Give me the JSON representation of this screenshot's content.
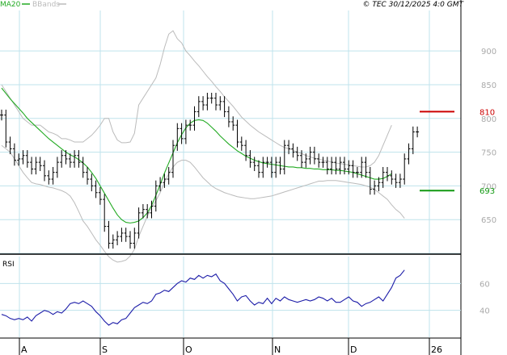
{
  "legend": {
    "ma": "MA20",
    "bb": "BBands"
  },
  "copyright": "© TEC 30/12/2025 4:0 GMT",
  "colors": {
    "ma": "#22aa22",
    "bb": "#bbbbbb",
    "bars": "#000000",
    "rsi": "#1c1ca8",
    "resistance": "#cc0000",
    "support": "#119911",
    "grid": "#bfe3ec"
  },
  "chart_data": [
    {
      "type": "ohlc",
      "ylim": [
        600,
        960
      ],
      "y_ticks": [
        "900",
        "850",
        "800",
        "750",
        "700",
        "650"
      ],
      "x_ticks": [
        "A",
        "S",
        "O",
        "N",
        "D",
        "26"
      ],
      "levels": [
        {
          "value": 810,
          "label": "810"
        },
        {
          "value": 693,
          "label": "693"
        }
      ],
      "closes": [
        805,
        765,
        755,
        738,
        740,
        745,
        735,
        725,
        735,
        730,
        715,
        710,
        720,
        735,
        745,
        740,
        735,
        745,
        735,
        720,
        710,
        700,
        690,
        680,
        640,
        615,
        620,
        625,
        630,
        625,
        615,
        630,
        660,
        665,
        660,
        670,
        700,
        705,
        710,
        720,
        760,
        785,
        770,
        790,
        790,
        810,
        825,
        820,
        830,
        830,
        820,
        825,
        810,
        795,
        790,
        765,
        760,
        745,
        735,
        730,
        720,
        735,
        735,
        720,
        735,
        725,
        760,
        755,
        750,
        745,
        735,
        740,
        750,
        740,
        735,
        735,
        725,
        735,
        725,
        735,
        725,
        730,
        720,
        720,
        735,
        720,
        695,
        700,
        705,
        720,
        715,
        710,
        705,
        710,
        740,
        755,
        780,
        780
      ],
      "ma20": [
        845,
        837,
        829,
        822,
        815,
        808,
        800,
        794,
        788,
        782,
        776,
        770,
        765,
        760,
        755,
        750,
        746,
        743,
        739,
        734,
        728,
        720,
        711,
        700,
        689,
        678,
        667,
        657,
        650,
        646,
        645,
        646,
        648,
        653,
        660,
        671,
        686,
        702,
        719,
        734,
        749,
        764,
        776,
        786,
        793,
        797,
        798,
        797,
        793,
        787,
        781,
        774,
        768,
        762,
        757,
        752,
        748,
        744,
        741,
        738,
        736,
        734,
        733,
        732,
        731,
        730,
        729,
        728,
        728,
        727,
        727,
        726,
        726,
        725,
        725,
        724,
        724,
        724,
        723,
        723,
        722,
        721,
        720,
        718,
        716,
        714,
        712,
        710,
        710,
        711,
        714,
        718
      ],
      "bb_upper": [
        850,
        840,
        830,
        820,
        810,
        800,
        795,
        790,
        790,
        790,
        785,
        780,
        778,
        775,
        770,
        770,
        768,
        765,
        765,
        765,
        770,
        775,
        782,
        790,
        800,
        800,
        780,
        768,
        764,
        764,
        765,
        778,
        820,
        830,
        840,
        850,
        860,
        880,
        905,
        925,
        930,
        918,
        912,
        900,
        893,
        885,
        878,
        870,
        862,
        855,
        847,
        840,
        832,
        825,
        818,
        810,
        802,
        796,
        790,
        785,
        780,
        776,
        772,
        768,
        764,
        760,
        757,
        755,
        753,
        750,
        748,
        745,
        743,
        741,
        740,
        738,
        737,
        735,
        734,
        733,
        732,
        731,
        730,
        729,
        728,
        728,
        730,
        735,
        745,
        760,
        775,
        790
      ],
      "bb_lower": [
        760,
        755,
        750,
        740,
        730,
        720,
        712,
        705,
        703,
        702,
        700,
        698,
        697,
        695,
        693,
        690,
        685,
        675,
        662,
        648,
        640,
        630,
        620,
        612,
        603,
        595,
        590,
        587,
        588,
        590,
        596,
        606,
        625,
        640,
        655,
        668,
        678,
        690,
        705,
        718,
        728,
        735,
        738,
        738,
        735,
        728,
        720,
        712,
        706,
        700,
        696,
        693,
        690,
        688,
        686,
        684,
        683,
        682,
        681,
        681,
        682,
        683,
        684,
        685,
        687,
        689,
        691,
        693,
        695,
        697,
        699,
        701,
        703,
        705,
        707,
        707,
        708,
        708,
        708,
        707,
        706,
        705,
        704,
        703,
        702,
        700,
        698,
        695,
        690,
        685,
        680,
        672,
        665,
        660,
        652
      ],
      "legend_names": [
        "MA20",
        "BBands"
      ]
    },
    {
      "type": "line",
      "title": "RSI",
      "ylim": [
        20,
        80
      ],
      "y_ticks": [
        "60",
        "40"
      ],
      "values": [
        37,
        36,
        34,
        33,
        34,
        33,
        35,
        32,
        36,
        38,
        40,
        39,
        37,
        39,
        38,
        41,
        45,
        46,
        45,
        47,
        45,
        43,
        39,
        36,
        32,
        29,
        31,
        30,
        33,
        34,
        38,
        42,
        44,
        46,
        45,
        47,
        52,
        53,
        55,
        54,
        57,
        60,
        62,
        61,
        64,
        63,
        66,
        64,
        66,
        65,
        67,
        62,
        60,
        56,
        52,
        47,
        50,
        51,
        47,
        44,
        46,
        45,
        49,
        45,
        49,
        47,
        50,
        48,
        47,
        46,
        47,
        48,
        47,
        48,
        50,
        49,
        47,
        49,
        46,
        46,
        48,
        50,
        47,
        46,
        43,
        45,
        46,
        48,
        50,
        47,
        52,
        57,
        64,
        66,
        70
      ]
    }
  ]
}
